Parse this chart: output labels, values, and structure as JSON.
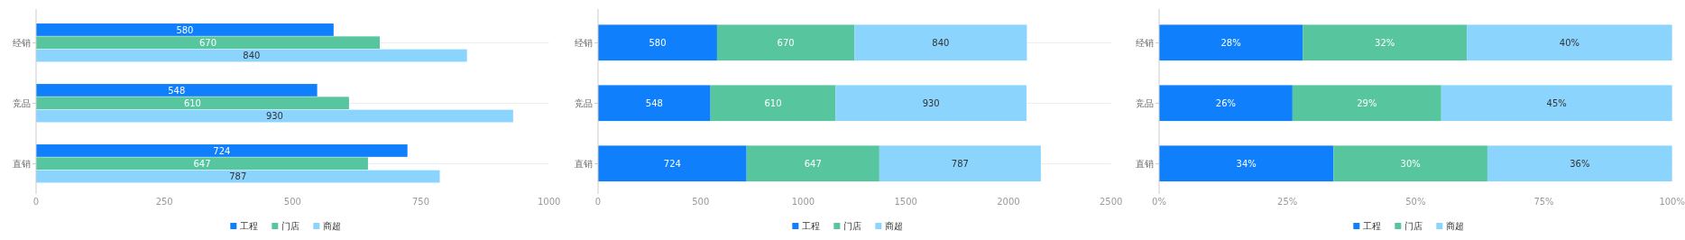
{
  "chart_data": [
    {
      "type": "bar",
      "orientation": "horizontal",
      "categories": [
        "经销",
        "竞品",
        "直销"
      ],
      "series": [
        {
          "name": "工程",
          "color": "#0f7ffc",
          "values": [
            580,
            548,
            724
          ]
        },
        {
          "name": "门店",
          "color": "#57c59d",
          "values": [
            670,
            610,
            647
          ]
        },
        {
          "name": "商超",
          "color": "#8ad4fe",
          "values": [
            840,
            930,
            787
          ]
        }
      ],
      "xlim": [
        0,
        1000
      ],
      "xticks": [
        0,
        250,
        500,
        750,
        1000
      ],
      "data_labels": true,
      "grid": "y",
      "legend": "bottom"
    },
    {
      "type": "bar",
      "orientation": "horizontal",
      "stacked": true,
      "categories": [
        "经销",
        "竞品",
        "直销"
      ],
      "series": [
        {
          "name": "工程",
          "color": "#0f7ffc",
          "values": [
            580,
            548,
            724
          ]
        },
        {
          "name": "门店",
          "color": "#57c59d",
          "values": [
            670,
            610,
            647
          ]
        },
        {
          "name": "商超",
          "color": "#8ad4fe",
          "values": [
            840,
            930,
            787
          ]
        }
      ],
      "xlim": [
        0,
        2500
      ],
      "xticks": [
        0,
        500,
        1000,
        1500,
        2000,
        2500
      ],
      "data_labels": true,
      "grid": "y",
      "legend": "bottom"
    },
    {
      "type": "bar",
      "orientation": "horizontal",
      "stacked": true,
      "categories": [
        "经销",
        "竞品",
        "直销"
      ],
      "series": [
        {
          "name": "工程",
          "color": "#0f7ffc",
          "values": [
            28,
            26,
            34
          ],
          "value_labels": [
            "28%",
            "26%",
            "34%"
          ]
        },
        {
          "name": "门店",
          "color": "#57c59d",
          "values": [
            32,
            29,
            30
          ],
          "value_labels": [
            "32%",
            "29%",
            "30%"
          ]
        },
        {
          "name": "商超",
          "color": "#8ad4fe",
          "values": [
            40,
            45,
            36
          ],
          "value_labels": [
            "40%",
            "45%",
            "36%"
          ]
        }
      ],
      "xlim": [
        0,
        100
      ],
      "xticks": [
        {
          "value": 0,
          "label": "0%"
        },
        {
          "value": 25,
          "label": "25%"
        },
        {
          "value": 50,
          "label": "50%"
        },
        {
          "value": 75,
          "label": "75%"
        },
        {
          "value": 100,
          "label": "100%"
        }
      ],
      "grid": "y",
      "legend": "bottom"
    }
  ]
}
